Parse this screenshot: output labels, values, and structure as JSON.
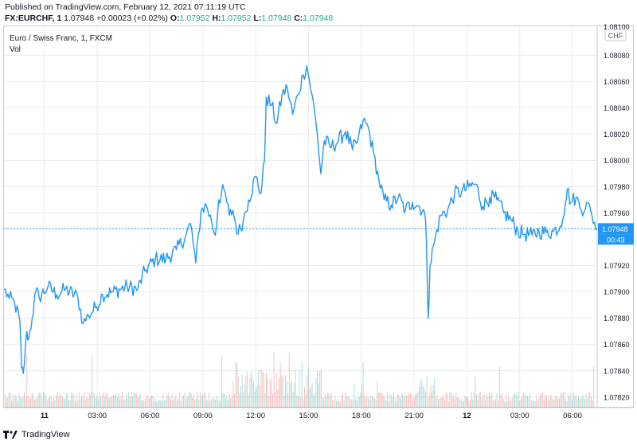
{
  "header": {
    "published": "Published on TradingView.com, February 12, 2021 07:11:19 UTC",
    "symbol": "FX:EURCHF, 1",
    "last": "1.07948",
    "change": "+0.00023 (+0.02%)",
    "o_label": "O:",
    "o_value": "1.07952",
    "h_label": "H:",
    "h_value": "1.07952",
    "l_label": "L:",
    "l_value": "1.07948",
    "c_label": "C:",
    "c_value": "1.07948"
  },
  "legend": {
    "title": "Euro / Swiss Franc, 1, FXCM",
    "vol": "Vol"
  },
  "footer": {
    "brand": "TradingView"
  },
  "colors": {
    "line": "#2196f3",
    "vol_up": "#26a69a",
    "vol_down": "#ef5350",
    "price_tag": "#2196f3",
    "grid": "#e9ebf0"
  },
  "chart_data": {
    "type": "line",
    "currency": "CHF",
    "price_axis": {
      "min": 1.07812,
      "max": 1.08102,
      "ticks": [
        "1.08080",
        "1.08060",
        "1.08040",
        "1.08020",
        "1.08000",
        "1.07980",
        "1.07960",
        "1.07920",
        "1.07900",
        "1.07880",
        "1.07860",
        "1.07840",
        "1.07820"
      ],
      "top_partial": "1.08100"
    },
    "last_price": "1.07948",
    "countdown": "00:43",
    "time_axis": {
      "ticks": [
        {
          "label": "11",
          "hour": 2.3,
          "bold": true
        },
        {
          "label": "03:00",
          "hour": 5.3
        },
        {
          "label": "06:00",
          "hour": 8.3
        },
        {
          "label": "09:00",
          "hour": 11.3
        },
        {
          "label": "12:00",
          "hour": 14.3
        },
        {
          "label": "15:00",
          "hour": 17.3
        },
        {
          "label": "18:00",
          "hour": 20.3
        },
        {
          "label": "21:00",
          "hour": 23.3
        },
        {
          "label": "12",
          "hour": 26.3,
          "bold": true
        },
        {
          "label": "03:00",
          "hour": 29.3
        },
        {
          "label": "06:00",
          "hour": 32.3
        }
      ],
      "start_hour": 0,
      "end_hour": 33.7
    },
    "series": [
      {
        "keypoints": [
          [
            0.0,
            1.07902
          ],
          [
            0.3,
            1.07895
          ],
          [
            0.6,
            1.07892
          ],
          [
            0.9,
            1.07878
          ],
          [
            1.0,
            1.07842
          ],
          [
            1.1,
            1.07838
          ],
          [
            1.3,
            1.0787
          ],
          [
            1.4,
            1.07864
          ],
          [
            1.6,
            1.0788
          ],
          [
            1.8,
            1.079
          ],
          [
            2.0,
            1.07896
          ],
          [
            2.5,
            1.07904
          ],
          [
            3.0,
            1.07898
          ],
          [
            3.5,
            1.07902
          ],
          [
            4.2,
            1.07896
          ],
          [
            4.5,
            1.07876
          ],
          [
            4.8,
            1.07882
          ],
          [
            5.2,
            1.07888
          ],
          [
            5.6,
            1.07898
          ],
          [
            6.2,
            1.079
          ],
          [
            7.0,
            1.07904
          ],
          [
            7.6,
            1.07902
          ],
          [
            8.0,
            1.07916
          ],
          [
            8.6,
            1.07925
          ],
          [
            9.2,
            1.07925
          ],
          [
            9.8,
            1.07932
          ],
          [
            10.3,
            1.07942
          ],
          [
            10.6,
            1.07952
          ],
          [
            10.9,
            1.07922
          ],
          [
            11.2,
            1.07962
          ],
          [
            11.5,
            1.07966
          ],
          [
            11.8,
            1.07953
          ],
          [
            12.0,
            1.07943
          ],
          [
            12.2,
            1.0797
          ],
          [
            12.5,
            1.07978
          ],
          [
            12.8,
            1.07958
          ],
          [
            13.0,
            1.07962
          ],
          [
            13.3,
            1.07944
          ],
          [
            13.6,
            1.07955
          ],
          [
            13.9,
            1.0797
          ],
          [
            14.3,
            1.07988
          ],
          [
            14.6,
            1.07975
          ],
          [
            14.8,
            1.08
          ],
          [
            14.9,
            1.08048
          ],
          [
            15.2,
            1.08042
          ],
          [
            15.5,
            1.08028
          ],
          [
            15.8,
            1.0805
          ],
          [
            16.1,
            1.08055
          ],
          [
            16.4,
            1.08035
          ],
          [
            16.7,
            1.0805
          ],
          [
            17.0,
            1.08065
          ],
          [
            17.2,
            1.08072
          ],
          [
            17.5,
            1.0805
          ],
          [
            17.8,
            1.0802
          ],
          [
            18.0,
            1.0799
          ],
          [
            18.2,
            1.08015
          ],
          [
            18.6,
            1.0801
          ],
          [
            19.0,
            1.08015
          ],
          [
            19.4,
            1.08022
          ],
          [
            19.8,
            1.08008
          ],
          [
            20.1,
            1.08015
          ],
          [
            20.4,
            1.0803
          ],
          [
            20.7,
            1.08025
          ],
          [
            21.0,
            1.08005
          ],
          [
            21.3,
            1.07985
          ],
          [
            21.6,
            1.0797
          ],
          [
            22.0,
            1.07966
          ],
          [
            22.4,
            1.07972
          ],
          [
            22.8,
            1.07962
          ],
          [
            23.2,
            1.07968
          ],
          [
            23.6,
            1.07965
          ],
          [
            23.9,
            1.0796
          ],
          [
            24.0,
            1.07938
          ],
          [
            24.1,
            1.0788
          ],
          [
            24.2,
            1.0792
          ],
          [
            24.4,
            1.07935
          ],
          [
            24.8,
            1.07958
          ],
          [
            25.2,
            1.07962
          ],
          [
            25.6,
            1.07975
          ],
          [
            26.0,
            1.07976
          ],
          [
            26.4,
            1.0798
          ],
          [
            26.8,
            1.07982
          ],
          [
            27.2,
            1.07965
          ],
          [
            27.6,
            1.07972
          ],
          [
            28.0,
            1.0797
          ],
          [
            28.4,
            1.0796
          ],
          [
            28.8,
            1.07955
          ],
          [
            29.2,
            1.07946
          ],
          [
            29.6,
            1.07944
          ],
          [
            30.0,
            1.07943
          ],
          [
            30.4,
            1.07946
          ],
          [
            30.8,
            1.07945
          ],
          [
            31.2,
            1.07946
          ],
          [
            31.6,
            1.0795
          ],
          [
            31.9,
            1.07968
          ],
          [
            32.0,
            1.07978
          ],
          [
            32.2,
            1.07968
          ],
          [
            32.5,
            1.07972
          ],
          [
            32.8,
            1.07962
          ],
          [
            33.1,
            1.07968
          ],
          [
            33.4,
            1.07958
          ],
          [
            33.7,
            1.07948
          ]
        ]
      }
    ]
  }
}
